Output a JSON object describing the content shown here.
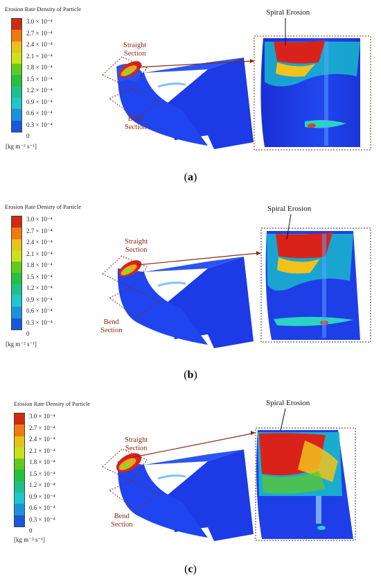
{
  "legend": {
    "title": "Erosion Rate Density of Particle",
    "ticks": [
      "3.0 × 10⁻⁴",
      "2.7 × 10⁻⁴",
      "2.4 × 10⁻⁴",
      "2.1 × 10⁻⁴",
      "1.8 × 10⁻⁴",
      "1.5 × 10⁻⁴",
      "1.2 × 10⁻⁴",
      "0.9 × 10⁻⁴",
      "0.6 × 10⁻⁴",
      "0.3 × 10⁻⁴",
      "0"
    ],
    "unit": "[kg m⁻² s⁻¹]",
    "colors": [
      "#d12a12",
      "#ef7a10",
      "#e8c21b",
      "#c9e21c",
      "#62c91f",
      "#23c23f",
      "#1fc08d",
      "#20c6cd",
      "#1b93dc",
      "#1758dc"
    ]
  },
  "labels": {
    "straight": [
      "Straight",
      "Section"
    ],
    "bend": [
      "Bend",
      "Section"
    ],
    "spiral": "Spiral Erosion"
  },
  "panels": [
    {
      "caption_open": "(",
      "caption_letter": "a",
      "caption_close": ")"
    },
    {
      "caption_open": "(",
      "caption_letter": "b",
      "caption_close": ")"
    },
    {
      "caption_open": "(",
      "caption_letter": "c",
      "caption_close": ")"
    }
  ]
}
